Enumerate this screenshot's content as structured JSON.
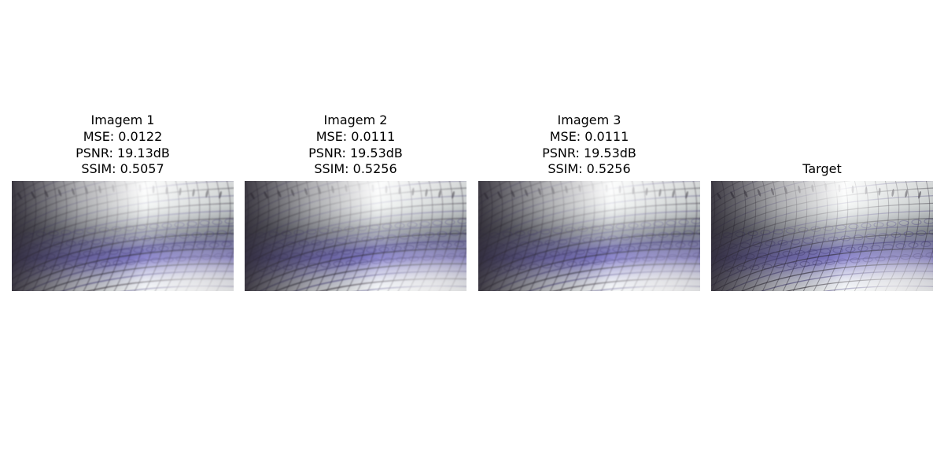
{
  "panels": [
    {
      "name": "Imagem 1",
      "mse": "MSE: 0.0122",
      "psnr": "PSNR: 19.13dB",
      "ssim": "SSIM: 0.5057"
    },
    {
      "name": "Imagem 2",
      "mse": "MSE: 0.0111",
      "psnr": "PSNR: 19.53dB",
      "ssim": "SSIM: 0.5256"
    },
    {
      "name": "Imagem 3",
      "mse": "MSE: 0.0111",
      "psnr": "PSNR: 19.53dB",
      "ssim": "SSIM: 0.5256"
    },
    {
      "name": "Target"
    }
  ],
  "colors": {
    "highlight": "#f4f8f6",
    "mid_gray": "#8e949a",
    "violet": "#7f78c8",
    "deep_violet": "#4f4888",
    "dark": "#2a2630"
  }
}
